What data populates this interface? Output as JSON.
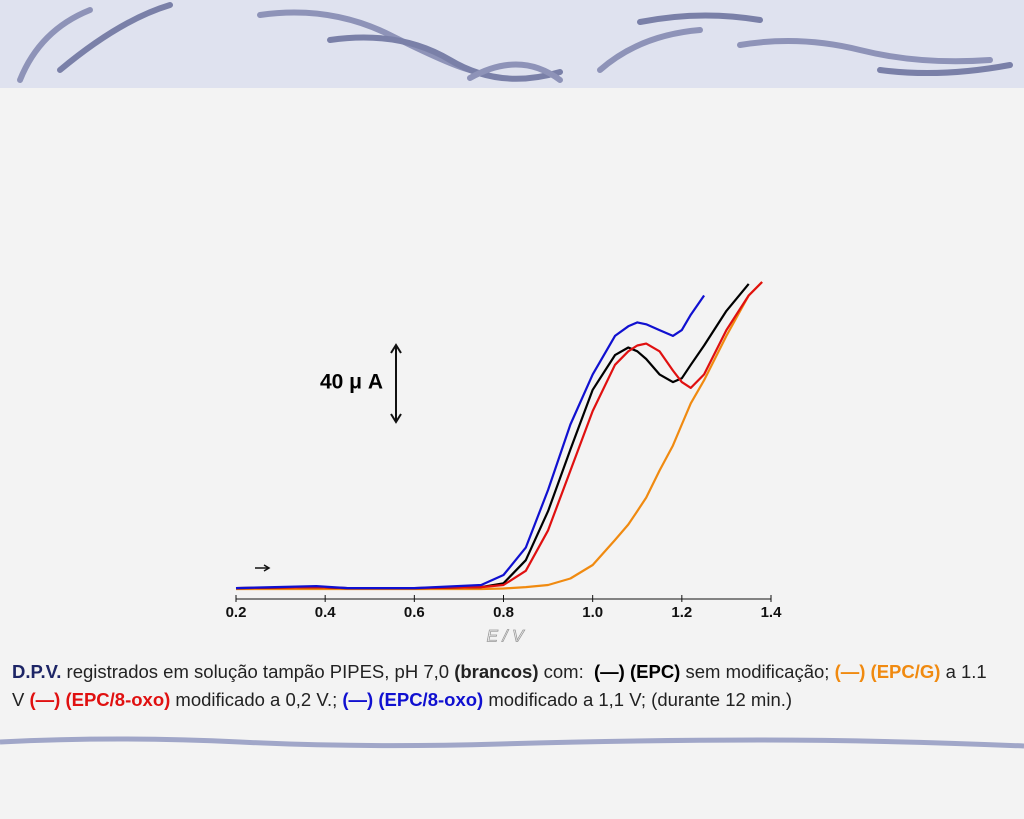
{
  "chart_data": {
    "type": "line",
    "x_label": "E / V",
    "x": [
      0.2,
      0.38,
      0.45,
      0.6,
      0.75,
      0.8,
      0.85,
      0.9,
      0.95,
      1.0,
      1.05,
      1.08,
      1.1,
      1.12,
      1.15,
      1.18,
      1.2,
      1.22,
      1.25,
      1.3,
      1.35,
      1.38
    ],
    "series": [
      {
        "color": "#f08a10",
        "values": [
          0.5,
          0.5,
          0.5,
          0.5,
          0.5,
          0.8,
          1.5,
          2.6,
          6,
          13,
          26,
          34,
          41,
          48,
          62,
          75,
          86,
          97,
          109,
          132,
          153,
          160
        ]
      },
      {
        "color": "#000000",
        "values": [
          1,
          1.5,
          1,
          1,
          1.5,
          3.5,
          15.5,
          41,
          73,
          104,
          122,
          126,
          124,
          120,
          112,
          108,
          110,
          117,
          127,
          145,
          159,
          null
        ]
      },
      {
        "color": "#e01010",
        "values": [
          1,
          1.5,
          1,
          1,
          1.5,
          2.6,
          10,
          31,
          62,
          93,
          117,
          124,
          127,
          128,
          124,
          114,
          108,
          105,
          112,
          135,
          153,
          160
        ]
      },
      {
        "color": "#1010d0",
        "values": [
          1,
          2,
          1,
          1,
          2.6,
          7.8,
          22,
          52,
          86,
          112,
          132,
          137,
          139,
          138,
          135,
          132,
          135,
          143,
          153,
          null,
          null,
          null
        ]
      }
    ],
    "xlim": [
      0.2,
      1.4
    ],
    "ylim": [
      0,
      160
    ],
    "xticks": [
      0.2,
      0.4,
      0.6,
      0.8,
      {
        "value": 1,
        "label": "1.0"
      },
      1.2,
      1.4
    ],
    "scale_bar": {
      "value": 40,
      "label": "40 μ A"
    },
    "caption": [
      {
        "text": "D.P.V.",
        "bold": true,
        "color": "#1d2566"
      },
      {
        "text": " registrados em solução tampão PIPES, pH 7,0 "
      },
      {
        "text": "(brancos)",
        "bold": true
      },
      {
        "text": " com:  "
      },
      {
        "text": "(—) (EPC)",
        "bold": true,
        "color": "#000000"
      },
      {
        "text": " sem modificação; "
      },
      {
        "text": "(—) (EPC/G)",
        "bold": true,
        "color": "#f08a10"
      },
      {
        "text": " a 1.1 V "
      },
      {
        "text": "(—) (EPC/8-oxo)",
        "bold": true,
        "color": "#e01010"
      },
      {
        "text": " modificado a 0,2 V.; "
      },
      {
        "text": "(—) (EPC/8-oxo)",
        "bold": true,
        "color": "#1010d0"
      },
      {
        "text": " modificado a 1,1 V; (durante 12 min.)"
      }
    ]
  }
}
